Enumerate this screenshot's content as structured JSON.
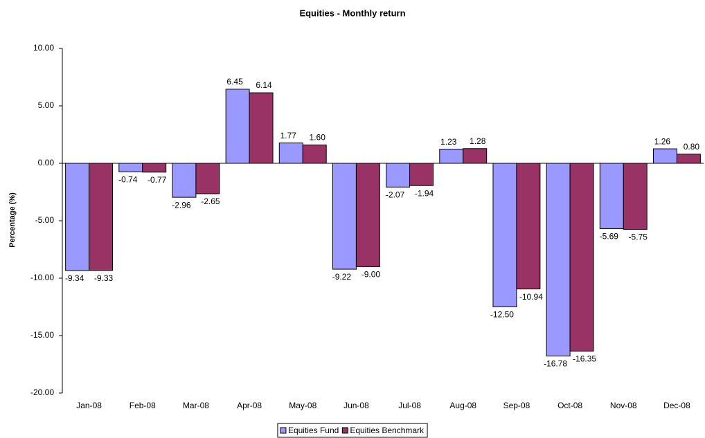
{
  "chart_data": {
    "type": "bar",
    "title": "Equities - Monthly return",
    "y_label": "Percentage (%)",
    "categories": [
      "Jan-08",
      "Feb-08",
      "Mar-08",
      "Apr-08",
      "May-08",
      "Jun-08",
      "Jul-08",
      "Aug-08",
      "Sep-08",
      "Oct-08",
      "Nov-08",
      "Dec-08"
    ],
    "series": [
      {
        "name": "Equities Fund",
        "color": "#9999ff",
        "values": [
          -9.34,
          -0.74,
          -2.96,
          6.45,
          1.77,
          -9.22,
          -2.07,
          1.23,
          -12.5,
          -16.78,
          -5.69,
          1.26
        ],
        "value_labels": [
          "-9.34",
          "-0.74",
          "-2.96",
          "6.45",
          "1.77",
          "-9.22",
          "-2.07",
          "1.23",
          "-12.50",
          "-16.78",
          "-5.69",
          "1.26"
        ]
      },
      {
        "name": "Equities Benchmark",
        "color": "#993366",
        "values": [
          -9.33,
          -0.77,
          -2.65,
          6.14,
          1.6,
          -9,
          -1.94,
          1.28,
          -10.94,
          -16.35,
          -5.75,
          0.8
        ],
        "value_labels": [
          "-9.33",
          "-0.77",
          "-2.65",
          "6.14",
          "1.60",
          "-9.00",
          "-1.94",
          "1.28",
          "-10.94",
          "-16.35",
          "-5.75",
          "0.80"
        ]
      }
    ],
    "ylim": [
      -20,
      10
    ],
    "yticks": [
      {
        "value": -20,
        "label": "-20.00"
      },
      {
        "value": -15,
        "label": "-15.00"
      },
      {
        "value": -10,
        "label": "-10.00"
      },
      {
        "value": -5,
        "label": "-5.00"
      },
      {
        "value": 0,
        "label": "0.00"
      },
      {
        "value": 5,
        "label": "5.00"
      },
      {
        "value": 10,
        "label": "10.00"
      }
    ],
    "legend": "bottom"
  }
}
